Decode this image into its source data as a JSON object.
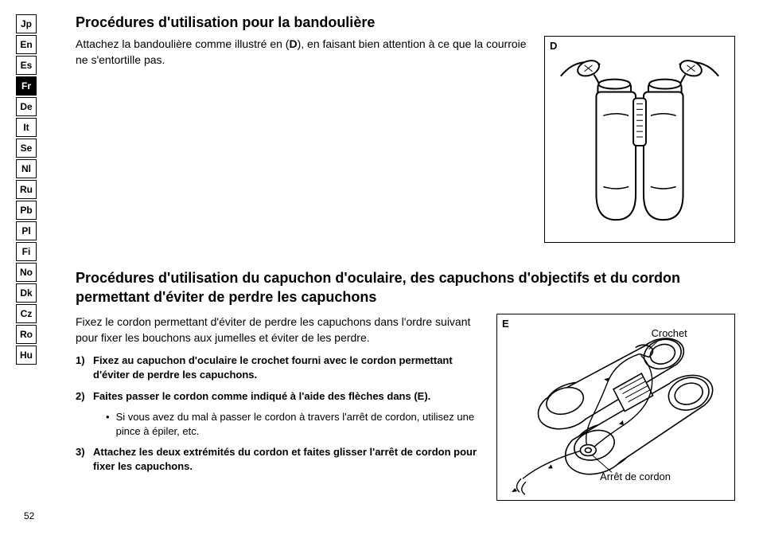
{
  "languages": [
    {
      "code": "Jp",
      "active": false
    },
    {
      "code": "En",
      "active": false
    },
    {
      "code": "Es",
      "active": false
    },
    {
      "code": "Fr",
      "active": true
    },
    {
      "code": "De",
      "active": false
    },
    {
      "code": "It",
      "active": false
    },
    {
      "code": "Se",
      "active": false
    },
    {
      "code": "Nl",
      "active": false
    },
    {
      "code": "Ru",
      "active": false
    },
    {
      "code": "Pb",
      "active": false
    },
    {
      "code": "Pl",
      "active": false
    },
    {
      "code": "Fi",
      "active": false
    },
    {
      "code": "No",
      "active": false
    },
    {
      "code": "Dk",
      "active": false
    },
    {
      "code": "Cz",
      "active": false
    },
    {
      "code": "Ro",
      "active": false
    },
    {
      "code": "Hu",
      "active": false
    }
  ],
  "section1": {
    "title": "Procédures d'utilisation pour la bandoulière",
    "text_pre": "Attachez la bandoulière comme illustré en (",
    "text_bold": "D",
    "text_post": "), en faisant bien attention à ce que la courroie ne s'entortille pas.",
    "fig_label": "D"
  },
  "section2": {
    "title": "Procédures d'utilisation du capuchon d'oculaire, des capuchons d'objectifs et du cordon permettant d'éviter de perdre les capuchons",
    "intro": "Fixez le cordon permettant d'éviter de perdre les capuchons dans l'ordre suivant pour fixer les bouchons aux jumelles et éviter de les perdre.",
    "steps": [
      {
        "num": "1)",
        "text": "Fixez au capuchon d'oculaire le crochet fourni avec le cordon permettant d'éviter de perdre les capuchons."
      },
      {
        "num": "2)",
        "text_pre": "Faites passer le cordon comme indiqué à l'aide des flèches dans (",
        "text_bold": "E",
        "text_post": ").",
        "sub": "Si vous avez du mal à passer le cordon à travers l'arrêt de cordon, utilisez une pince à épiler, etc."
      },
      {
        "num": "3)",
        "text": "Attachez les deux extrémités du cordon et faites glisser l'arrêt de cordon pour fixer les capuchons."
      }
    ],
    "fig_label": "E",
    "callout_hook": "Crochet",
    "callout_stopper": "Arrêt de cordon"
  },
  "page_number": "52",
  "colors": {
    "text": "#000000",
    "bg": "#ffffff",
    "border": "#000000"
  }
}
